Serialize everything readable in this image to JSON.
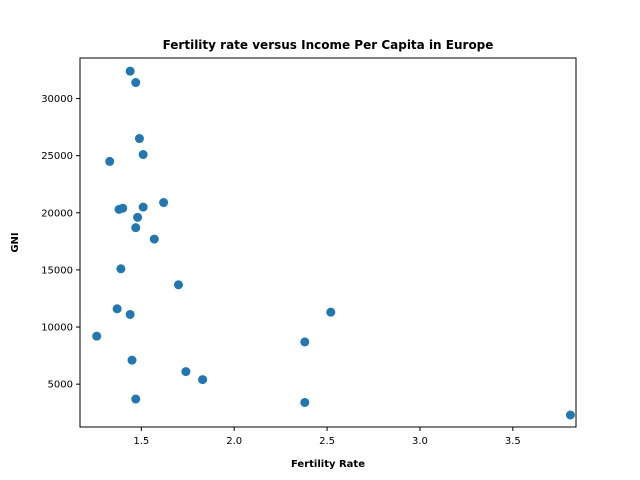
{
  "chart_data": {
    "type": "scatter",
    "title": "Fertility rate versus Income Per Capita in Europe",
    "xlabel": "Fertility Rate",
    "ylabel": "GNI",
    "xlim": [
      1.17,
      3.84
    ],
    "ylim": [
      1250,
      33550
    ],
    "xticks": [
      1.5,
      2.0,
      2.5,
      3.0,
      3.5
    ],
    "xtick_labels": [
      "1.5",
      "2.0",
      "2.5",
      "3.0",
      "3.5"
    ],
    "yticks": [
      5000,
      10000,
      15000,
      20000,
      25000,
      30000
    ],
    "ytick_labels": [
      "5000",
      "10000",
      "15000",
      "20000",
      "25000",
      "30000"
    ],
    "grid": false,
    "marker_color": "#1f77b4",
    "series": [
      {
        "x": [
          1.44,
          1.47,
          1.49,
          1.51,
          1.33,
          1.62,
          1.51,
          1.38,
          1.4,
          1.48,
          1.47,
          1.57,
          1.39,
          1.7,
          1.37,
          1.44,
          2.52,
          1.26,
          2.38,
          1.45,
          1.74,
          1.83,
          1.47,
          2.38,
          3.81
        ],
        "y": [
          32400,
          31400,
          26500,
          25100,
          24500,
          20900,
          20500,
          20300,
          20400,
          19600,
          18700,
          17700,
          15100,
          13700,
          11600,
          11100,
          11300,
          9200,
          8700,
          7100,
          6100,
          5400,
          3700,
          3400,
          2300
        ]
      }
    ]
  }
}
